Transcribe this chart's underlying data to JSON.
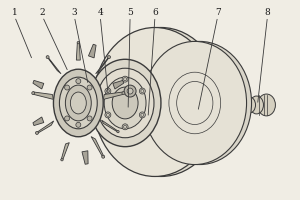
{
  "background_color": "#f0ede4",
  "line_color": "#3a3a3a",
  "label_color": "#1a1a1a",
  "figsize": [
    3.0,
    2.0
  ],
  "dpi": 100,
  "callouts": [
    [
      "1",
      14,
      188,
      32,
      140
    ],
    [
      "2",
      42,
      188,
      68,
      128
    ],
    [
      "3",
      74,
      188,
      88,
      115
    ],
    [
      "4",
      100,
      188,
      108,
      105
    ],
    [
      "5",
      130,
      188,
      128,
      90
    ],
    [
      "6",
      155,
      188,
      148,
      82
    ],
    [
      "7",
      218,
      188,
      198,
      88
    ],
    [
      "8",
      268,
      188,
      258,
      95
    ]
  ]
}
